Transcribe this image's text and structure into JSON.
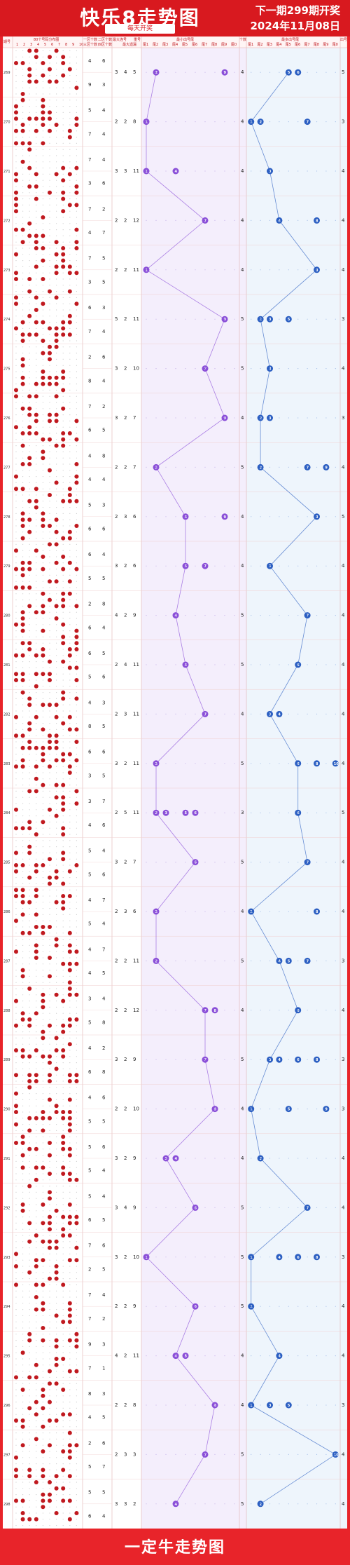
{
  "header": {
    "title": "快乐8走势图",
    "subtitle": "每天开奖",
    "next_draw": "下一期299期开奖",
    "date": "2024年11月08日"
  },
  "footer": {
    "text": "一定牛走势图"
  },
  "colors": {
    "brand_red": "#d8191f",
    "purple": "#8a4fd8",
    "blue": "#2c5fc2",
    "ball_red": "#c0191f"
  },
  "chart_data": {
    "type": "table",
    "columns": {
      "period": "期号",
      "distribution": "80个号码分布图",
      "distribution_cols": [
        "1",
        "2",
        "3",
        "4",
        "5",
        "6",
        "7",
        "8",
        "9",
        "10"
      ],
      "zone_count_1": "一区个数",
      "zone_count_2": "二区个数",
      "zone_count_3": "三区个数",
      "zone_count_4": "四区个数",
      "max_consec": "最大连号",
      "max_gap": "最大遗漏",
      "repeat": "重号",
      "min_tail_title": "最小出号尾",
      "max_tail_title": "最多出号尾",
      "tail_cols": [
        "尾1",
        "尾2",
        "尾3",
        "尾4",
        "尾5",
        "尾6",
        "尾7",
        "尾8",
        "尾9",
        "尾0"
      ],
      "count_col": "个数",
      "left_edge": "期号",
      "right_edge": "出号"
    },
    "periods": [
      {
        "id": "269",
        "z1": 4,
        "z2": 6,
        "z3": 9,
        "z4": 3,
        "mc": 3,
        "mg": 4,
        "rep": 5,
        "min_tail": [
          2,
          9
        ],
        "min_cnt": 4,
        "max_tail": [
          5,
          6
        ],
        "max_cnt": 5
      },
      {
        "id": "270",
        "z1": 5,
        "z2": 4,
        "z3": 7,
        "z4": 4,
        "mc": 2,
        "mg": 2,
        "rep": 8,
        "min_tail": [
          1
        ],
        "min_cnt": 4,
        "max_tail": [
          1,
          2,
          7
        ],
        "max_cnt": 3
      },
      {
        "id": "271",
        "z1": 7,
        "z2": 4,
        "z3": 3,
        "z4": 6,
        "mc": 3,
        "mg": 3,
        "rep": 11,
        "min_tail": [
          1,
          4
        ],
        "min_cnt": 4,
        "max_tail": [
          3
        ],
        "max_cnt": 4
      },
      {
        "id": "272",
        "z1": 7,
        "z2": 2,
        "z3": 4,
        "z4": 7,
        "mc": 2,
        "mg": 2,
        "rep": 12,
        "min_tail": [
          7
        ],
        "min_cnt": 4,
        "max_tail": [
          4,
          8
        ],
        "max_cnt": 4
      },
      {
        "id": "273",
        "z1": 7,
        "z2": 5,
        "z3": 3,
        "z4": 5,
        "mc": 2,
        "mg": 2,
        "rep": 11,
        "min_tail": [
          1
        ],
        "min_cnt": 4,
        "max_tail": [
          8
        ],
        "max_cnt": 4
      },
      {
        "id": "274",
        "z1": 6,
        "z2": 3,
        "z3": 7,
        "z4": 4,
        "mc": 5,
        "mg": 2,
        "rep": 11,
        "min_tail": [
          9
        ],
        "min_cnt": 5,
        "max_tail": [
          2,
          3,
          5
        ],
        "max_cnt": 3
      },
      {
        "id": "275",
        "z1": 2,
        "z2": 6,
        "z3": 8,
        "z4": 4,
        "mc": 3,
        "mg": 2,
        "rep": 10,
        "min_tail": [
          7
        ],
        "min_cnt": 5,
        "max_tail": [
          3
        ],
        "max_cnt": 4
      },
      {
        "id": "276",
        "z1": 7,
        "z2": 2,
        "z3": 6,
        "z4": 5,
        "mc": 3,
        "mg": 2,
        "rep": 7,
        "min_tail": [
          9
        ],
        "min_cnt": 4,
        "max_tail": [
          2,
          3
        ],
        "max_cnt": 3
      },
      {
        "id": "277",
        "z1": 4,
        "z2": 8,
        "z3": 4,
        "z4": 4,
        "mc": 2,
        "mg": 2,
        "rep": 7,
        "min_tail": [
          2
        ],
        "min_cnt": 5,
        "max_tail": [
          2,
          7,
          9
        ],
        "max_cnt": 4
      },
      {
        "id": "278",
        "z1": 5,
        "z2": 3,
        "z3": 6,
        "z4": 6,
        "mc": 2,
        "mg": 3,
        "rep": 6,
        "min_tail": [
          5,
          9
        ],
        "min_cnt": 4,
        "max_tail": [
          8
        ],
        "max_cnt": 5
      },
      {
        "id": "279",
        "z1": 6,
        "z2": 4,
        "z3": 5,
        "z4": 5,
        "mc": 3,
        "mg": 2,
        "rep": 6,
        "min_tail": [
          5,
          7
        ],
        "min_cnt": 4,
        "max_tail": [
          3
        ],
        "max_cnt": 4
      },
      {
        "id": "280",
        "z1": 2,
        "z2": 8,
        "z3": 6,
        "z4": 4,
        "mc": 4,
        "mg": 2,
        "rep": 9,
        "min_tail": [
          4
        ],
        "min_cnt": 5,
        "max_tail": [
          7
        ],
        "max_cnt": 4
      },
      {
        "id": "281",
        "z1": 6,
        "z2": 5,
        "z3": 5,
        "z4": 6,
        "mc": 2,
        "mg": 4,
        "rep": 11,
        "min_tail": [
          5
        ],
        "min_cnt": 5,
        "max_tail": [
          6
        ],
        "max_cnt": 4
      },
      {
        "id": "282",
        "z1": 4,
        "z2": 3,
        "z3": 8,
        "z4": 5,
        "mc": 2,
        "mg": 3,
        "rep": 11,
        "min_tail": [
          7
        ],
        "min_cnt": 4,
        "max_tail": [
          3,
          4
        ],
        "max_cnt": 4
      },
      {
        "id": "283",
        "z1": 6,
        "z2": 6,
        "z3": 3,
        "z4": 5,
        "mc": 3,
        "mg": 2,
        "rep": 11,
        "min_tail": [
          2
        ],
        "min_cnt": 5,
        "max_tail": [
          6,
          8,
          10
        ],
        "max_cnt": 4
      },
      {
        "id": "284",
        "z1": 3,
        "z2": 7,
        "z3": 4,
        "z4": 6,
        "mc": 2,
        "mg": 5,
        "rep": 11,
        "min_tail": [
          2,
          3,
          5,
          6
        ],
        "min_cnt": 3,
        "max_tail": [
          6
        ],
        "max_cnt": 5
      },
      {
        "id": "285",
        "z1": 5,
        "z2": 4,
        "z3": 5,
        "z4": 6,
        "mc": 3,
        "mg": 2,
        "rep": 7,
        "min_tail": [
          6
        ],
        "min_cnt": 5,
        "max_tail": [
          7
        ],
        "max_cnt": 4
      },
      {
        "id": "286",
        "z1": 4,
        "z2": 7,
        "z3": 5,
        "z4": 4,
        "mc": 2,
        "mg": 3,
        "rep": 6,
        "min_tail": [
          2
        ],
        "min_cnt": 4,
        "max_tail": [
          1,
          8
        ],
        "max_cnt": 4
      },
      {
        "id": "287",
        "z1": 4,
        "z2": 7,
        "z3": 4,
        "z4": 5,
        "mc": 2,
        "mg": 2,
        "rep": 11,
        "min_tail": [
          2
        ],
        "min_cnt": 5,
        "max_tail": [
          4,
          5,
          7
        ],
        "max_cnt": 3
      },
      {
        "id": "288",
        "z1": 3,
        "z2": 4,
        "z3": 5,
        "z4": 8,
        "mc": 2,
        "mg": 2,
        "rep": 12,
        "min_tail": [
          7,
          8
        ],
        "min_cnt": 4,
        "max_tail": [
          6
        ],
        "max_cnt": 4
      },
      {
        "id": "289",
        "z1": 4,
        "z2": 2,
        "z3": 6,
        "z4": 8,
        "mc": 3,
        "mg": 2,
        "rep": 9,
        "min_tail": [
          7
        ],
        "min_cnt": 5,
        "max_tail": [
          3,
          4,
          6,
          8
        ],
        "max_cnt": 3
      },
      {
        "id": "290",
        "z1": 4,
        "z2": 6,
        "z3": 5,
        "z4": 5,
        "mc": 2,
        "mg": 2,
        "rep": 10,
        "min_tail": [
          8
        ],
        "min_cnt": 4,
        "max_tail": [
          1,
          5,
          9
        ],
        "max_cnt": 3
      },
      {
        "id": "291",
        "z1": 5,
        "z2": 6,
        "z3": 5,
        "z4": 4,
        "mc": 3,
        "mg": 2,
        "rep": 9,
        "min_tail": [
          3,
          4
        ],
        "min_cnt": 4,
        "max_tail": [
          2
        ],
        "max_cnt": 4
      },
      {
        "id": "292",
        "z1": 5,
        "z2": 4,
        "z3": 6,
        "z4": 5,
        "mc": 3,
        "mg": 4,
        "rep": 9,
        "min_tail": [
          6
        ],
        "min_cnt": 5,
        "max_tail": [
          7
        ],
        "max_cnt": 4
      },
      {
        "id": "293",
        "z1": 7,
        "z2": 6,
        "z3": 2,
        "z4": 5,
        "mc": 3,
        "mg": 2,
        "rep": 10,
        "min_tail": [
          1
        ],
        "min_cnt": 5,
        "max_tail": [
          1,
          4,
          6,
          8
        ],
        "max_cnt": 3
      },
      {
        "id": "294",
        "z1": 7,
        "z2": 4,
        "z3": 7,
        "z4": 2,
        "mc": 2,
        "mg": 2,
        "rep": 9,
        "min_tail": [
          6
        ],
        "min_cnt": 5,
        "max_tail": [
          1
        ],
        "max_cnt": 4
      },
      {
        "id": "295",
        "z1": 9,
        "z2": 3,
        "z3": 7,
        "z4": 1,
        "mc": 4,
        "mg": 2,
        "rep": 11,
        "min_tail": [
          4,
          5
        ],
        "min_cnt": 4,
        "max_tail": [
          4
        ],
        "max_cnt": 4
      },
      {
        "id": "296",
        "z1": 8,
        "z2": 3,
        "z3": 4,
        "z4": 5,
        "mc": 2,
        "mg": 2,
        "rep": 8,
        "min_tail": [
          8
        ],
        "min_cnt": 4,
        "max_tail": [
          1,
          3,
          5
        ],
        "max_cnt": 3
      },
      {
        "id": "297",
        "z1": 2,
        "z2": 6,
        "z3": 5,
        "z4": 7,
        "mc": 2,
        "mg": 3,
        "rep": 3,
        "min_tail": [
          7
        ],
        "min_cnt": 5,
        "max_tail": [
          10
        ],
        "max_cnt": 4
      },
      {
        "id": "298",
        "z1": 5,
        "z2": 5,
        "z3": 6,
        "z4": 4,
        "mc": 3,
        "mg": 3,
        "rep": 2,
        "min_tail": [
          4
        ],
        "min_cnt": 5,
        "max_tail": [
          2
        ],
        "max_cnt": 4
      }
    ]
  }
}
